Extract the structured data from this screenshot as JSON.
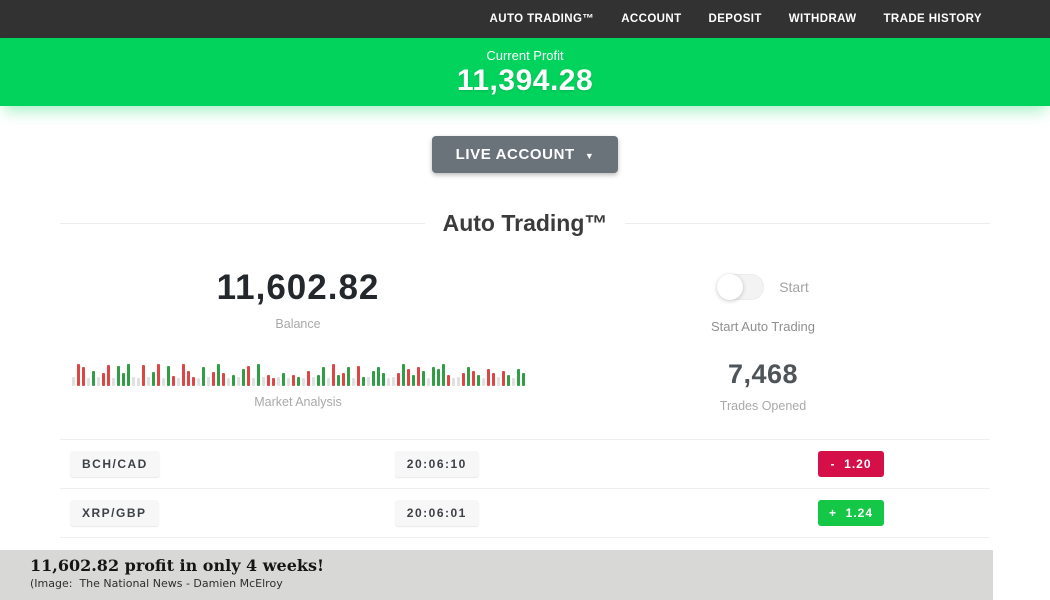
{
  "colors": {
    "nav_bg": "#323232",
    "banner_green": "#02d35c",
    "badge_red": "#d50f47",
    "badge_green": "#15c746",
    "bar_red": "#e04545",
    "bar_green": "#2f9e44",
    "bar_neutral": "#e0e0e0",
    "footer_bg": "#d8d8d6"
  },
  "nav": {
    "items": [
      "AUTO TRADING™",
      "ACCOUNT",
      "DEPOSIT",
      "WITHDRAW",
      "TRADE HISTORY"
    ]
  },
  "banner": {
    "label": "Current Profit",
    "value": "11,394.28"
  },
  "account_selector": {
    "label": "LIVE ACCOUNT",
    "caret": "▼"
  },
  "section": {
    "title": "Auto Trading™"
  },
  "stats": {
    "balance": {
      "value": "11,602.82",
      "label": "Balance"
    },
    "auto_trading": {
      "toggle_state": "off",
      "toggle_label": "Start",
      "label": "Start Auto Trading"
    },
    "market_analysis": {
      "label": "Market Analysis",
      "bars": [
        [
          "n",
          9
        ],
        [
          "r",
          22
        ],
        [
          "r",
          19
        ],
        [
          "n",
          8
        ],
        [
          "g",
          15
        ],
        [
          "n",
          9
        ],
        [
          "r",
          13
        ],
        [
          "r",
          21
        ],
        [
          "n",
          8
        ],
        [
          "g",
          20
        ],
        [
          "g",
          13
        ],
        [
          "g",
          22
        ],
        [
          "n",
          9
        ],
        [
          "n",
          8
        ],
        [
          "r",
          21
        ],
        [
          "n",
          9
        ],
        [
          "g",
          14
        ],
        [
          "r",
          22
        ],
        [
          "n",
          8
        ],
        [
          "g",
          20
        ],
        [
          "r",
          10
        ],
        [
          "n",
          8
        ],
        [
          "r",
          22
        ],
        [
          "r",
          15
        ],
        [
          "r",
          9
        ],
        [
          "n",
          8
        ],
        [
          "g",
          19
        ],
        [
          "n",
          9
        ],
        [
          "r",
          14
        ],
        [
          "g",
          22
        ],
        [
          "r",
          13
        ],
        [
          "n",
          8
        ],
        [
          "g",
          11
        ],
        [
          "n",
          9
        ],
        [
          "g",
          17
        ],
        [
          "r",
          20
        ],
        [
          "n",
          8
        ],
        [
          "g",
          22
        ],
        [
          "n",
          9
        ],
        [
          "r",
          11
        ],
        [
          "r",
          8
        ],
        [
          "n",
          9
        ],
        [
          "g",
          13
        ],
        [
          "n",
          8
        ],
        [
          "r",
          11
        ],
        [
          "g",
          9
        ],
        [
          "n",
          8
        ],
        [
          "r",
          15
        ],
        [
          "n",
          9
        ],
        [
          "g",
          11
        ],
        [
          "g",
          19
        ],
        [
          "n",
          8
        ],
        [
          "r",
          22
        ],
        [
          "g",
          11
        ],
        [
          "r",
          13
        ],
        [
          "g",
          19
        ],
        [
          "n",
          8
        ],
        [
          "r",
          20
        ],
        [
          "g",
          9
        ],
        [
          "n",
          9
        ],
        [
          "g",
          15
        ],
        [
          "g",
          19
        ],
        [
          "g",
          13
        ],
        [
          "n",
          8
        ],
        [
          "n",
          9
        ],
        [
          "r",
          13
        ],
        [
          "g",
          22
        ],
        [
          "r",
          17
        ],
        [
          "g",
          11
        ],
        [
          "r",
          19
        ],
        [
          "g",
          15
        ],
        [
          "n",
          8
        ],
        [
          "g",
          19
        ],
        [
          "g",
          17
        ],
        [
          "g",
          22
        ],
        [
          "r",
          11
        ],
        [
          "n",
          8
        ],
        [
          "n",
          9
        ],
        [
          "r",
          13
        ],
        [
          "g",
          19
        ],
        [
          "r",
          15
        ],
        [
          "g",
          11
        ],
        [
          "n",
          8
        ],
        [
          "r",
          17
        ],
        [
          "r",
          13
        ],
        [
          "n",
          9
        ],
        [
          "r",
          15
        ],
        [
          "g",
          11
        ],
        [
          "n",
          8
        ],
        [
          "g",
          17
        ],
        [
          "g",
          13
        ]
      ]
    },
    "trades_opened": {
      "value": "7,468",
      "label": "Trades Opened"
    }
  },
  "trades": {
    "rows": [
      {
        "pair": "BCH/CAD",
        "time": "20:06:10",
        "change": "-  1.20",
        "direction": "loss"
      },
      {
        "pair": "XRP/GBP",
        "time": "20:06:01",
        "change": "+  1.24",
        "direction": "gain"
      }
    ]
  },
  "footer": {
    "headline": "11,602.82 profit in only 4 weeks!",
    "credit": "(Image:  The National News - Damien McElroy"
  }
}
